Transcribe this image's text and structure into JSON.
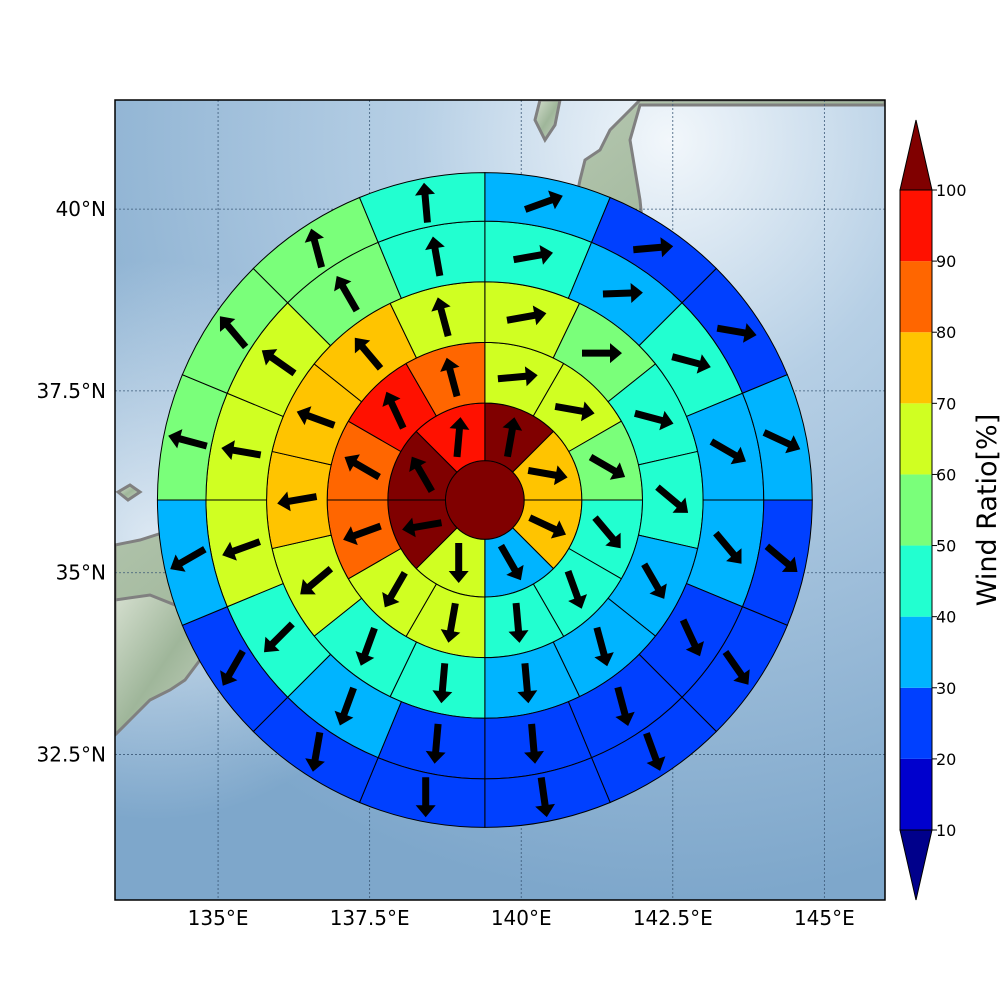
{
  "map": {
    "x_ticks": [
      {
        "value": 135,
        "label": "135°E"
      },
      {
        "value": 137.5,
        "label": "137.5°E"
      },
      {
        "value": 140,
        "label": "140°E"
      },
      {
        "value": 142.5,
        "label": "142.5°E"
      },
      {
        "value": 145,
        "label": "145°E"
      }
    ],
    "y_ticks": [
      {
        "value": 32.5,
        "label": "32.5°N"
      },
      {
        "value": 35,
        "label": "35°N"
      },
      {
        "value": 37.5,
        "label": "37.5°N"
      },
      {
        "value": 40,
        "label": "40°N"
      }
    ],
    "lon_range": [
      133.3,
      146.0
    ],
    "lat_range": [
      30.5,
      41.5
    ],
    "center_lon": 139.4,
    "center_lat": 36.0,
    "ring_radii_deg": [
      0.65,
      1.6,
      2.6,
      3.6,
      4.6,
      5.4
    ],
    "wind_ratio_percent": {
      "center": 100,
      "ring1": [
        100,
        70,
        70,
        30,
        60,
        100,
        100,
        90
      ],
      "ring2": [
        60,
        60,
        50,
        40,
        40,
        40,
        60,
        60,
        80,
        80,
        90,
        80
      ],
      "ring3": [
        60,
        50,
        40,
        40,
        30,
        30,
        30,
        40,
        40,
        60,
        70,
        70,
        70,
        60
      ],
      "ring4": [
        40,
        30,
        40,
        30,
        30,
        20,
        20,
        20,
        20,
        30,
        40,
        60,
        60,
        60,
        50,
        40
      ],
      "ring5": [
        30,
        20,
        20,
        30,
        20,
        20,
        20,
        20,
        20,
        20,
        20,
        30,
        50,
        50,
        50,
        40
      ]
    },
    "wind_direction_deg": {
      "center": 95,
      "ring1": [
        10,
        100,
        115,
        150,
        180,
        260,
        330,
        5
      ],
      "ring2": [
        85,
        100,
        120,
        140,
        160,
        175,
        190,
        210,
        250,
        300,
        335,
        345
      ],
      "ring3": [
        80,
        90,
        105,
        130,
        150,
        165,
        175,
        185,
        200,
        230,
        260,
        290,
        320,
        345
      ],
      "ring4": [
        80,
        88,
        105,
        120,
        140,
        155,
        165,
        175,
        185,
        200,
        225,
        250,
        280,
        305,
        330,
        350
      ],
      "ring5": [
        70,
        85,
        100,
        115,
        130,
        145,
        160,
        172,
        180,
        190,
        210,
        240,
        285,
        320,
        345,
        355
      ]
    }
  },
  "colorbar": {
    "title": "Wind Ratio[%]",
    "levels": [
      "10",
      "20",
      "30",
      "40",
      "50",
      "60",
      "70",
      "80",
      "90",
      "100"
    ],
    "colors": [
      "#0000cd",
      "#0040ff",
      "#00b4ff",
      "#22ffd0",
      "#7aff7a",
      "#d0ff22",
      "#ffc400",
      "#ff6600",
      "#ff1100"
    ],
    "under_color": "#00008b",
    "over_color": "#800000"
  },
  "colors": {
    "coast": "#808080",
    "land_low": "#c9d6c2",
    "land_high": "#8fa88a",
    "sea": "#9ebfdc",
    "grid": "#3c5a78"
  }
}
